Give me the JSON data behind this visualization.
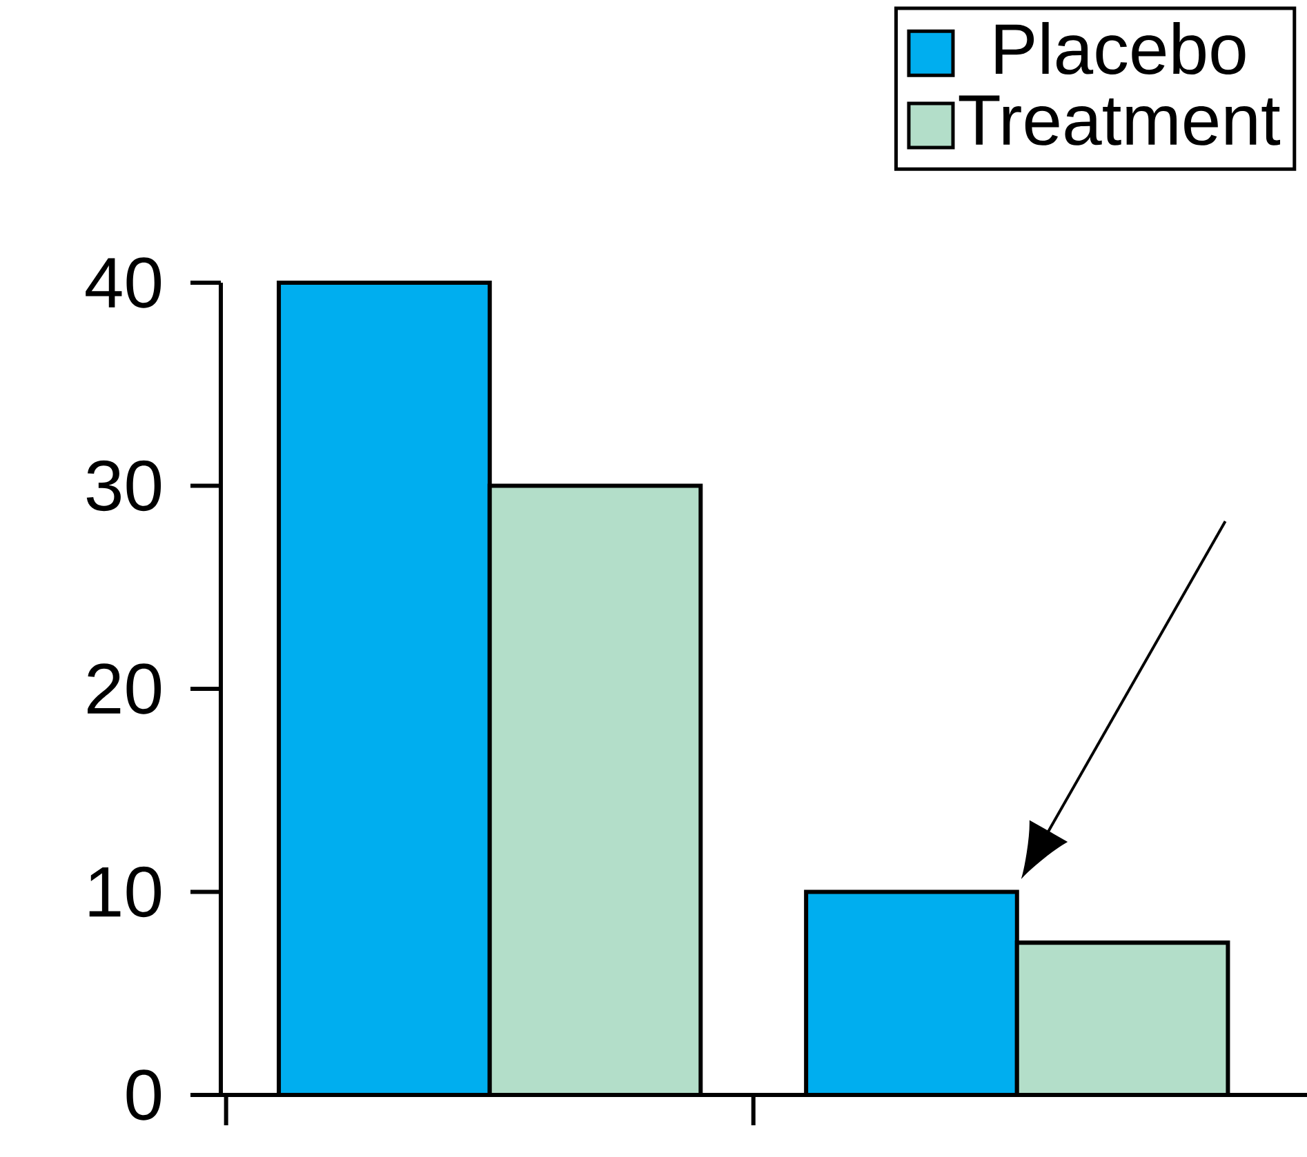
{
  "chart_data": {
    "type": "bar",
    "categories": [
      null,
      null
    ],
    "series": [
      {
        "name": "Placebo",
        "color": "#00aeef",
        "values": [
          40,
          10
        ]
      },
      {
        "name": "Treatment",
        "color": "#b3dec9",
        "values": [
          30,
          7.5
        ]
      }
    ],
    "ylim": [
      0,
      40
    ],
    "yticks": [
      0,
      10,
      20,
      30,
      40
    ],
    "grid": false,
    "legend": "top right",
    "tick_labels": "y"
  }
}
